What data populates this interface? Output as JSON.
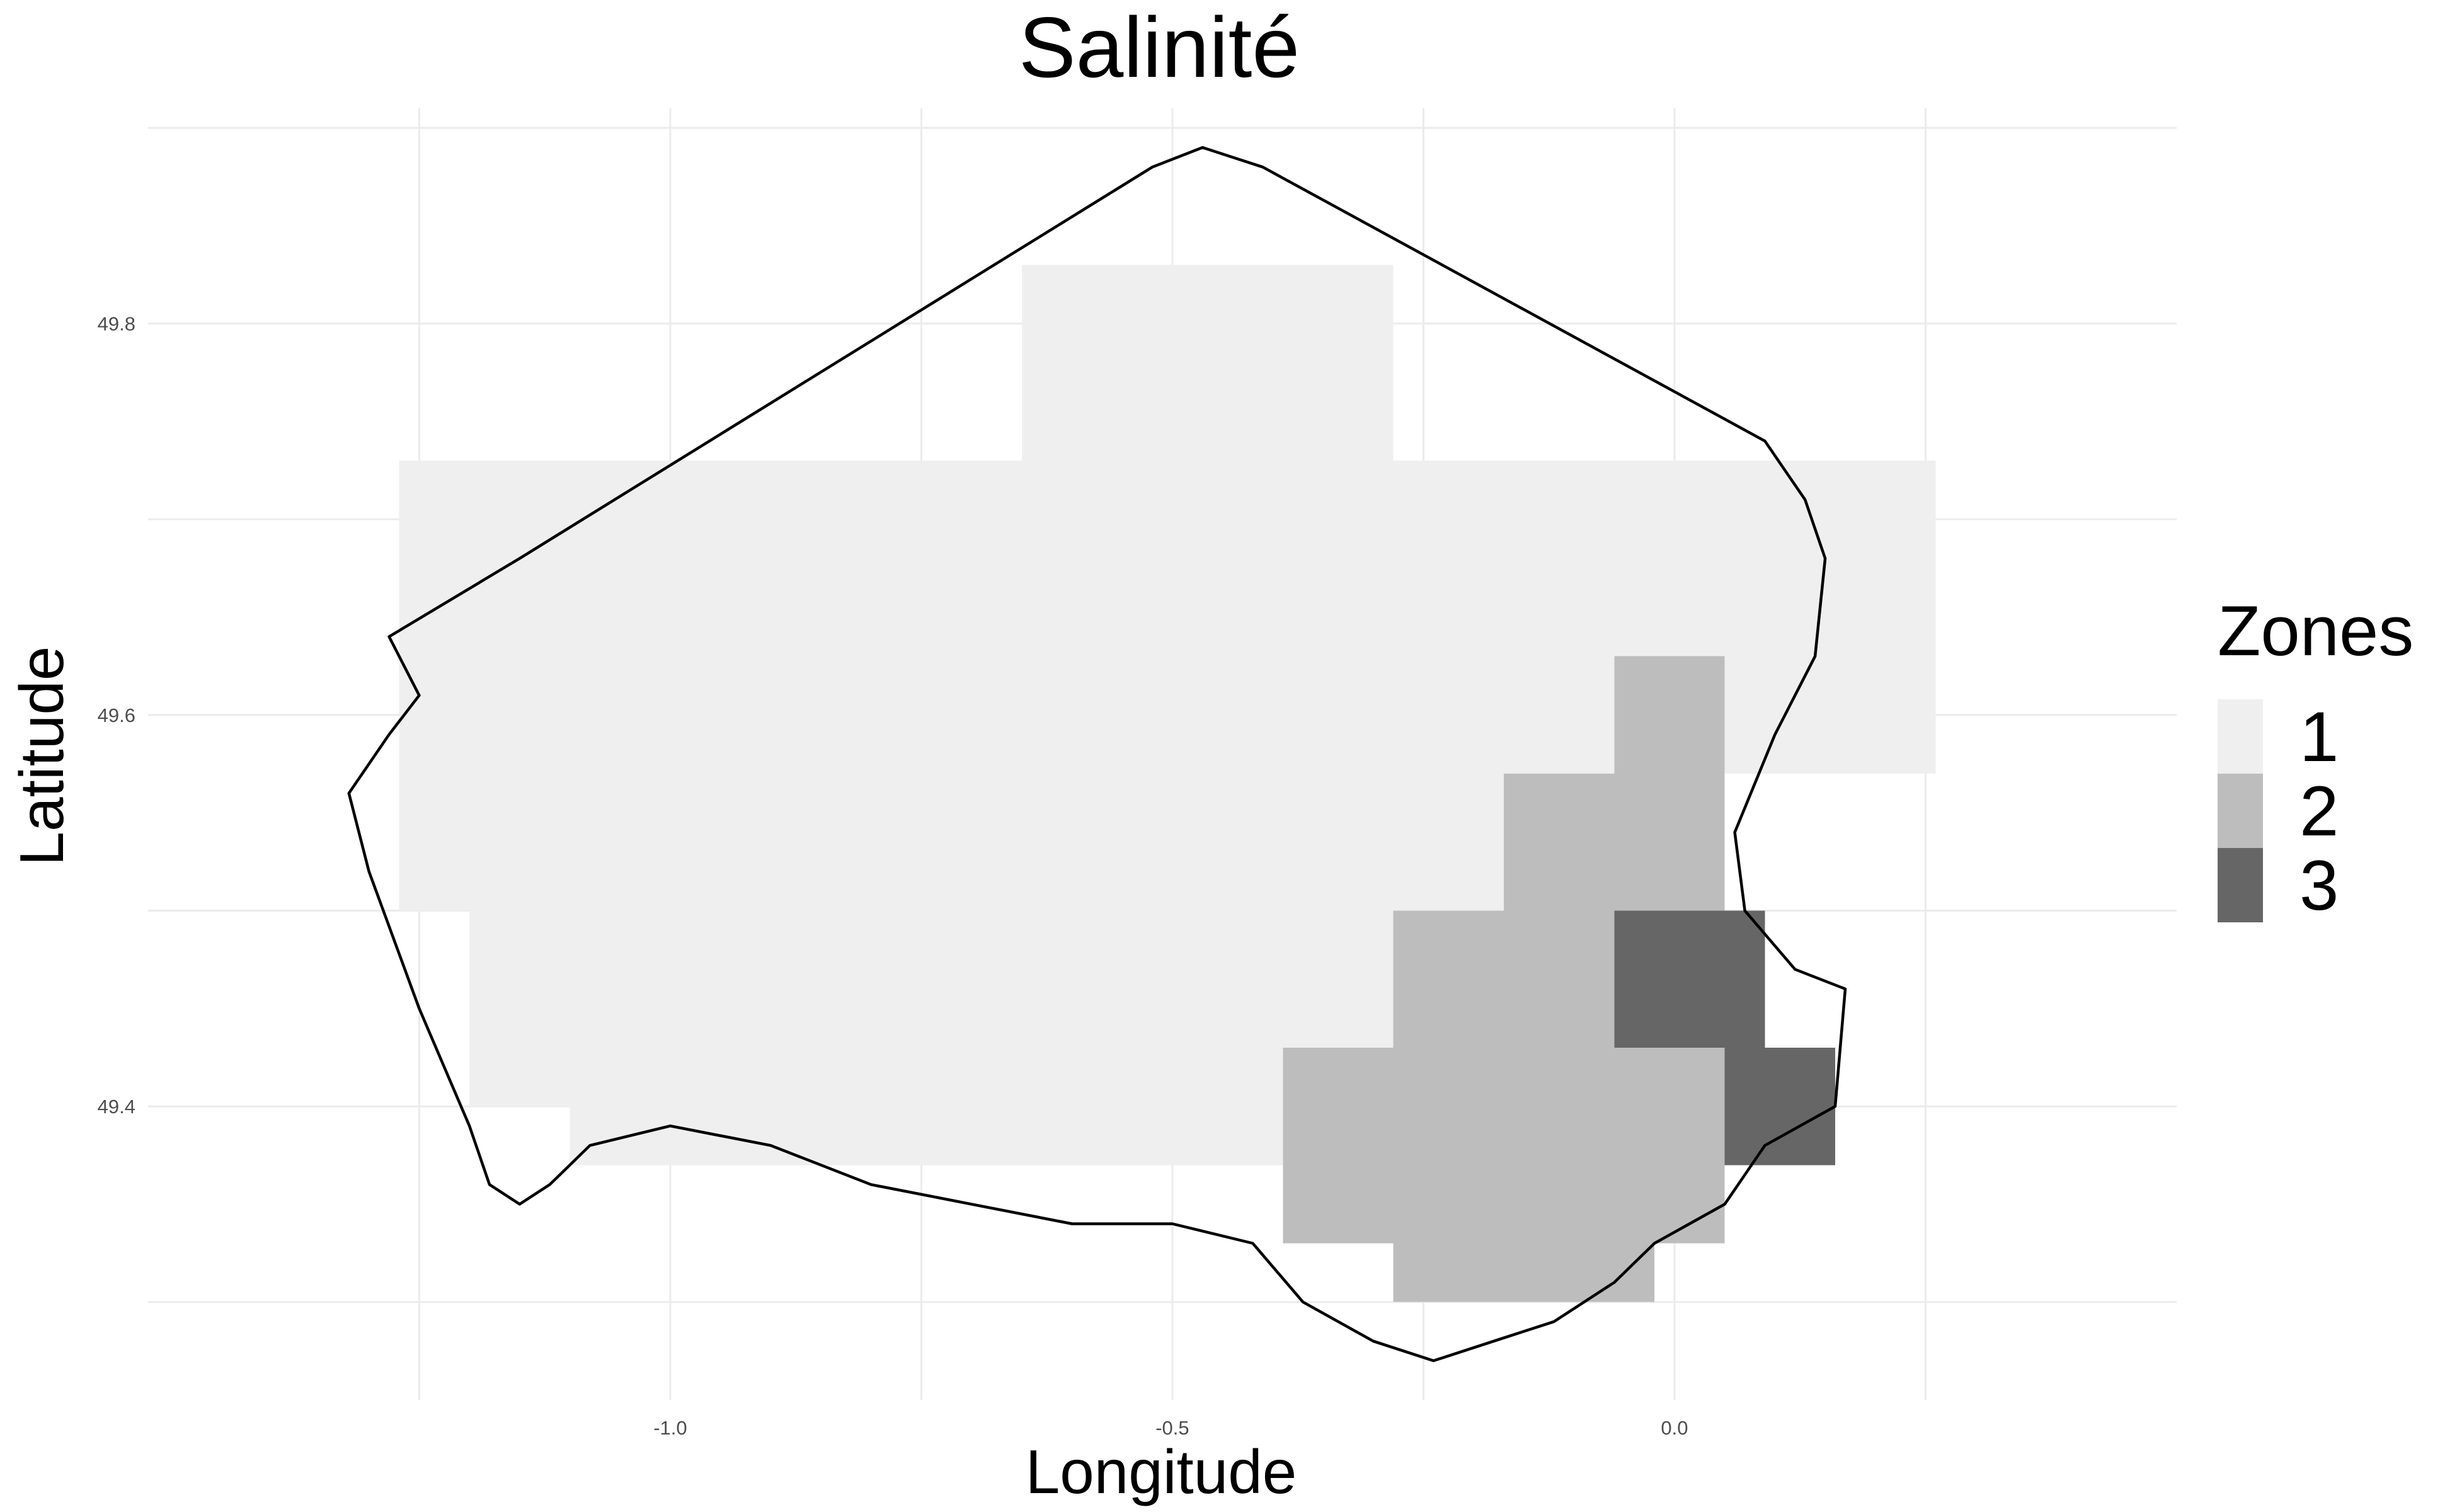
{
  "chart_data": {
    "type": "heatmap",
    "title": "Salinité",
    "xlabel": "Longitude",
    "ylabel": "Latitude",
    "x_ticks": [
      "-1.0",
      "-0.5",
      "0.0"
    ],
    "y_ticks": [
      "49.8",
      "49.6",
      "49.4"
    ],
    "xlim": [
      -1.52,
      0.5
    ],
    "ylim": [
      49.25,
      49.91
    ],
    "grid": true,
    "legend": {
      "title": "Zones",
      "position": "right",
      "entries": [
        {
          "label": "1",
          "color": "#efefef"
        },
        {
          "label": "2",
          "color": "#bdbdbd"
        },
        {
          "label": "3",
          "color": "#666666"
        }
      ]
    },
    "zones": [
      {
        "zone": "1",
        "color": "#efefef",
        "cells": [
          [
            -0.65,
            -0.28,
            49.73,
            49.83
          ],
          [
            -1.27,
            0.26,
            49.63,
            49.73
          ],
          [
            -1.27,
            0.26,
            49.57,
            49.63
          ],
          [
            -1.27,
            -0.17,
            49.5,
            49.57
          ],
          [
            -1.2,
            -0.28,
            49.43,
            49.5
          ],
          [
            -1.2,
            -0.39,
            49.4,
            49.43
          ],
          [
            -1.1,
            -0.39,
            49.37,
            49.4
          ]
        ]
      },
      {
        "zone": "2",
        "color": "#bdbdbd",
        "cells": [
          [
            -0.06,
            0.05,
            49.57,
            49.63
          ],
          [
            -0.17,
            0.05,
            49.5,
            49.57
          ],
          [
            -0.28,
            -0.06,
            49.43,
            49.5
          ],
          [
            -0.39,
            0.05,
            49.33,
            49.43
          ],
          [
            -0.28,
            -0.02,
            49.3,
            49.33
          ]
        ]
      },
      {
        "zone": "3",
        "color": "#666666",
        "cells": [
          [
            -0.06,
            0.09,
            49.43,
            49.5
          ],
          [
            0.05,
            0.16,
            49.37,
            49.43
          ]
        ]
      }
    ],
    "coastline": [
      [
        -1.28,
        49.64
      ],
      [
        -1.15,
        49.68
      ],
      [
        -0.52,
        49.88
      ],
      [
        -0.47,
        49.89
      ],
      [
        -0.41,
        49.88
      ],
      [
        0.09,
        49.74
      ],
      [
        0.13,
        49.71
      ],
      [
        0.15,
        49.68
      ],
      [
        0.14,
        49.63
      ],
      [
        0.1,
        49.59
      ],
      [
        0.06,
        49.54
      ],
      [
        0.07,
        49.5
      ],
      [
        0.12,
        49.47
      ],
      [
        0.17,
        49.46
      ],
      [
        0.16,
        49.4
      ],
      [
        0.09,
        49.38
      ],
      [
        0.05,
        49.35
      ],
      [
        -0.02,
        49.33
      ],
      [
        -0.06,
        49.31
      ],
      [
        -0.12,
        49.29
      ],
      [
        -0.18,
        49.28
      ],
      [
        -0.24,
        49.27
      ],
      [
        -0.3,
        49.28
      ],
      [
        -0.37,
        49.3
      ],
      [
        -0.42,
        49.33
      ],
      [
        -0.5,
        49.34
      ],
      [
        -0.6,
        49.34
      ],
      [
        -0.7,
        49.35
      ],
      [
        -0.8,
        49.36
      ],
      [
        -0.9,
        49.38
      ],
      [
        -1.0,
        49.39
      ],
      [
        -1.08,
        49.38
      ],
      [
        -1.12,
        49.36
      ],
      [
        -1.15,
        49.35
      ],
      [
        -1.18,
        49.36
      ],
      [
        -1.2,
        49.39
      ],
      [
        -1.25,
        49.45
      ],
      [
        -1.3,
        49.52
      ],
      [
        -1.32,
        49.56
      ],
      [
        -1.28,
        49.59
      ],
      [
        -1.25,
        49.61
      ],
      [
        -1.28,
        49.64
      ]
    ]
  }
}
